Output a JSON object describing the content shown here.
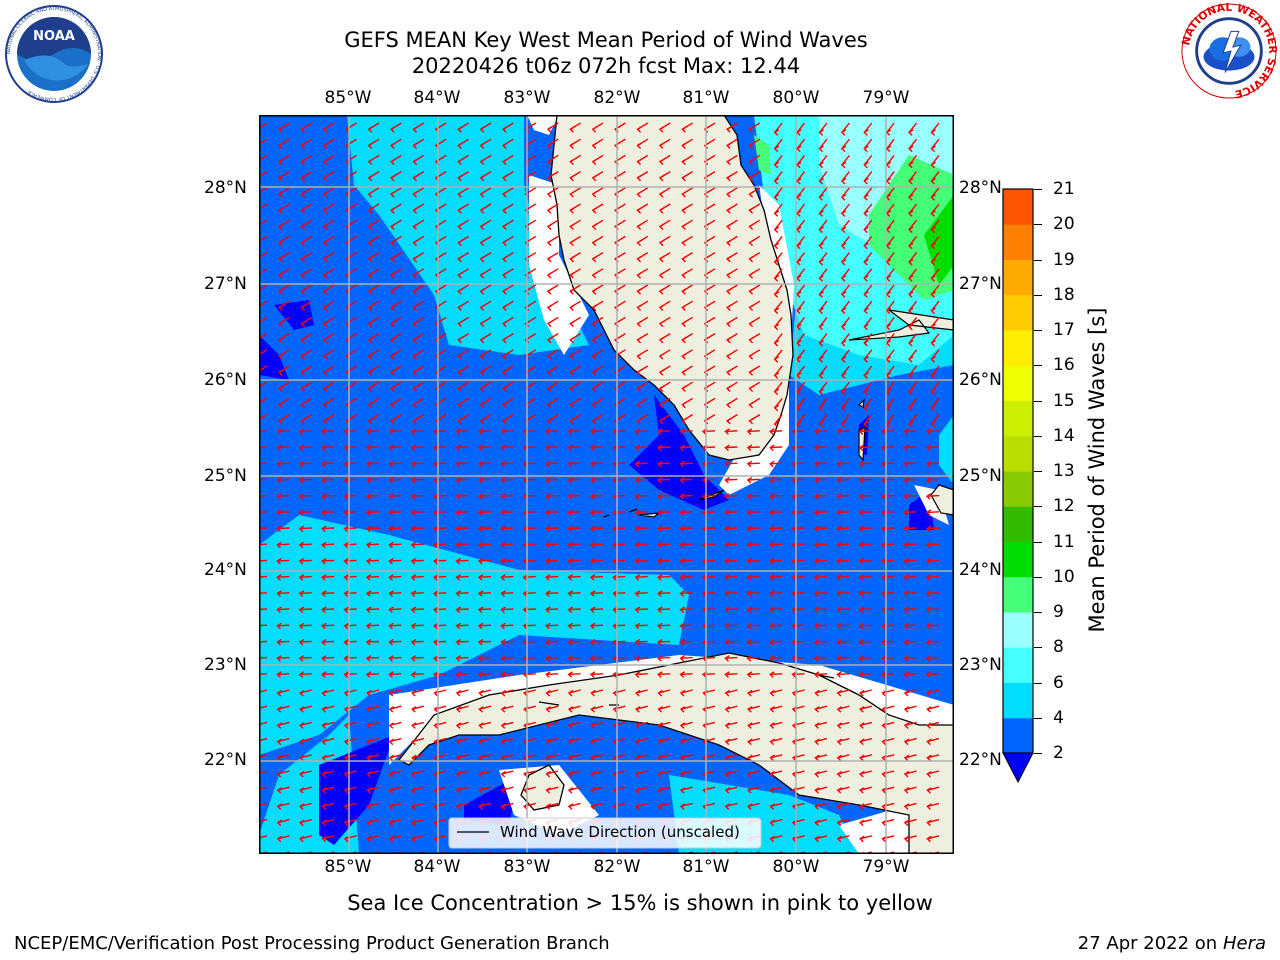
{
  "title": {
    "line1": "GEFS MEAN Key West Mean Period of Wind Waves",
    "line2": "20220426 t06z 072h fcst   Max: 12.44"
  },
  "logos": {
    "noaa": {
      "text": "NOAA",
      "ring": "NATIONAL OCEANIC AND ATMOSPHERIC ADMINISTRATION · U.S. DEPARTMENT OF COMMERCE",
      "icon": "noaa-logo"
    },
    "nws": {
      "ring": "NATIONAL WEATHER SERVICE",
      "icon": "nws-logo"
    }
  },
  "map": {
    "lon_ticks": [
      "85°W",
      "84°W",
      "83°W",
      "82°W",
      "81°W",
      "80°W",
      "79°W"
    ],
    "lat_ticks": [
      "28°N",
      "27°N",
      "26°N",
      "25°N",
      "24°N",
      "23°N",
      "22°N"
    ],
    "legend_label": "Wind Wave Direction (unscaled)",
    "arrow_color": "#ff0000",
    "land_color": "#efefdf"
  },
  "colorbar": {
    "label": "Mean Period of Wind Waves [s]",
    "ticks": [
      "2",
      "4",
      "6",
      "8",
      "9",
      "10",
      "11",
      "12",
      "13",
      "14",
      "15",
      "16",
      "17",
      "18",
      "19",
      "20",
      "21"
    ],
    "colors": [
      "#0066ff",
      "#00ddff",
      "#44ffff",
      "#99ffff",
      "#44ff77",
      "#00dd00",
      "#33bb00",
      "#88cc00",
      "#bbdd00",
      "#ccee00",
      "#eeff00",
      "#ffee00",
      "#ffcc00",
      "#ffaa00",
      "#ff7f00",
      "#ff5500",
      "#ff2200",
      "#ff0000"
    ],
    "under_color": "#0000ff"
  },
  "sea_ice_note": "Sea Ice Concentration > 15% is shown in pink to yellow",
  "footer": {
    "left": "NCEP/EMC/Verification Post Processing Product Generation Branch",
    "right_date": "27 Apr 2022 on ",
    "right_machine": "Hera"
  }
}
